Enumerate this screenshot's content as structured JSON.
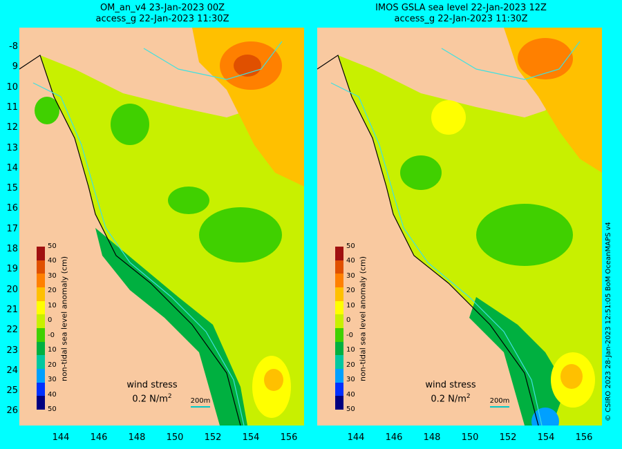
{
  "left_panel": {
    "title_line1": "OM_an_v4  23-Jan-2023 00Z",
    "title_line2": "access_g 22-Jan-2023 11:30Z",
    "wind_label": "wind stress",
    "wind_value": "0.2 N/m",
    "wind_exp": "2",
    "scale_label": "200m"
  },
  "right_panel": {
    "title_line1": "IMOS GSLA sea level  22-Jan-2023 12Z",
    "title_line2": "access_g 22-Jan-2023 11:30Z",
    "wind_label": "wind stress",
    "wind_value": "0.2 N/m",
    "wind_exp": "2",
    "scale_label": "200m"
  },
  "axes": {
    "lat_labels": [
      "-8",
      "9",
      "10",
      "11",
      "12",
      "13",
      "14",
      "15",
      "16",
      "17",
      "18",
      "19",
      "20",
      "21",
      "22",
      "23",
      "24",
      "25",
      "26"
    ],
    "lon_labels": [
      "144",
      "146",
      "148",
      "150",
      "152",
      "154",
      "156"
    ]
  },
  "colorbar": {
    "label": "non-tidal sea level anomaly (cm)",
    "ticks": [
      "50",
      "40",
      "30",
      "20",
      "10",
      "0",
      "-0",
      "10",
      "20",
      "30",
      "40",
      "50"
    ],
    "colors": [
      "#000080",
      "#0030ff",
      "#00a0ff",
      "#00c8a0",
      "#00b040",
      "#40d000",
      "#c8f000",
      "#ffff00",
      "#ffc000",
      "#ff8000",
      "#e05000",
      "#a01010"
    ]
  },
  "credit": "© CSIRO 2023   28-Jan-2023 12:51:05 BoM OceanMAPS v4",
  "colors": {
    "background": "#00ffff",
    "land": "#f9c9a0",
    "coast": "#000000",
    "contour_200m": "#40e0e0"
  }
}
